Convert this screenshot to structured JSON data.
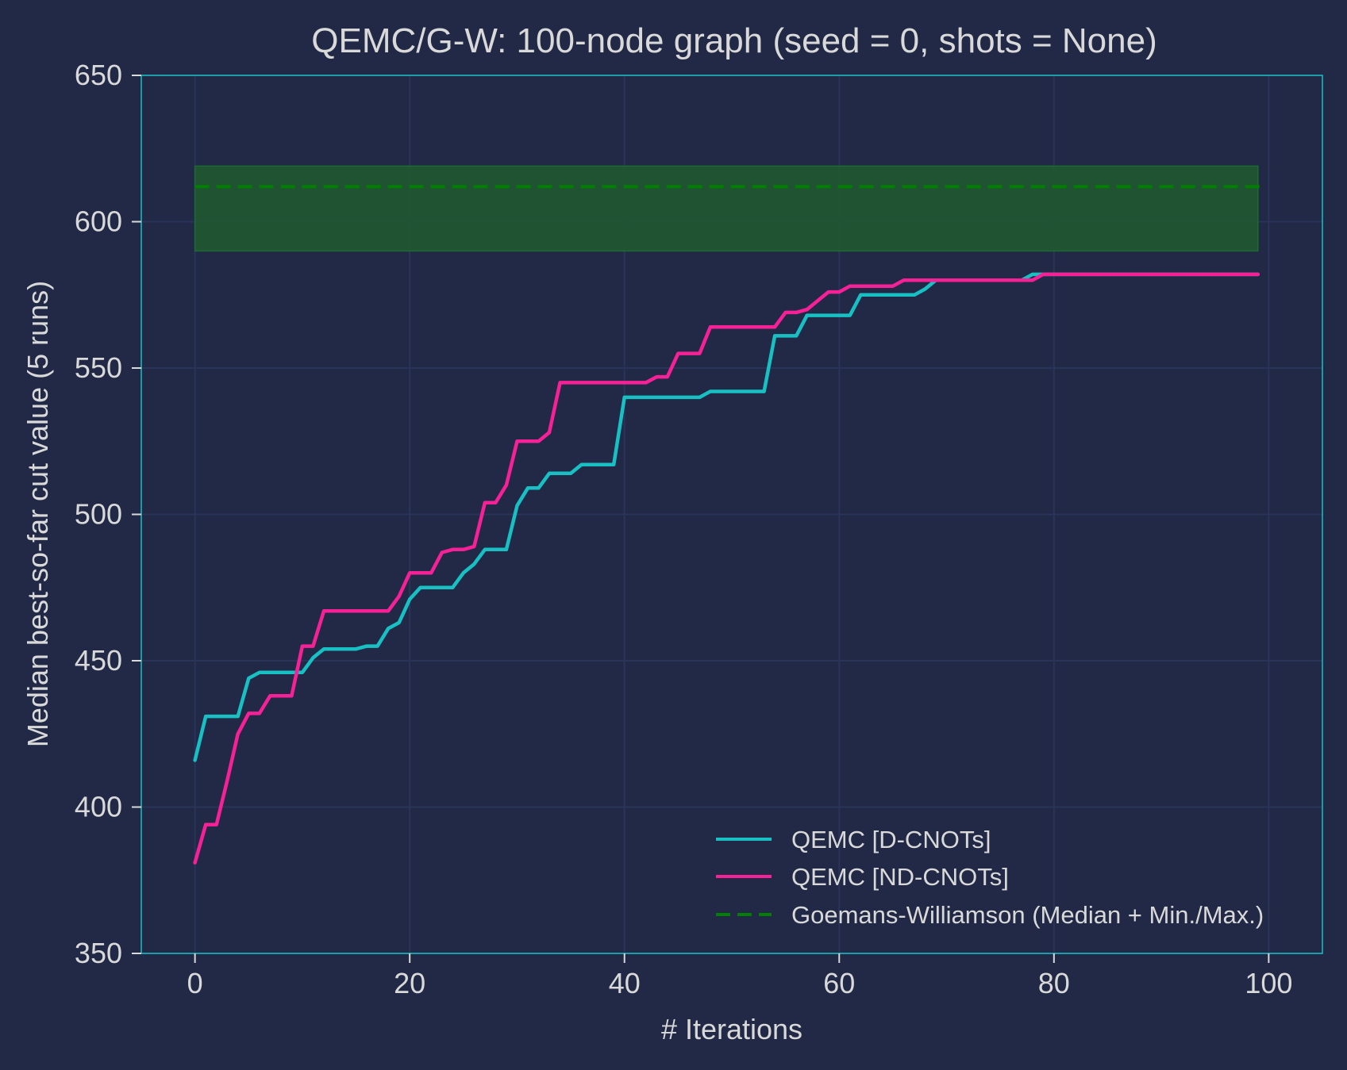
{
  "colors": {
    "background": "#212946",
    "grid": "#2A3459",
    "spine": "#18c0c4",
    "text": "#d9d9d9",
    "d_cnots": "#18c0c4",
    "nd_cnots": "#f62196",
    "gw": "#007f00",
    "gw_band": "#1f5a2f"
  },
  "chart_data": {
    "type": "line",
    "title": "QEMC/G-W: 100-node graph (seed = 0, shots = None)",
    "xlabel": "# Iterations",
    "ylabel": "Median best-so-far cut value (5 runs)",
    "xlim": [
      -5,
      105
    ],
    "ylim": [
      350,
      650
    ],
    "xticks": [
      0,
      20,
      40,
      60,
      80,
      100
    ],
    "yticks": [
      350,
      400,
      450,
      500,
      550,
      600,
      650
    ],
    "xtick_labels": [
      "0",
      "20",
      "40",
      "60",
      "80",
      "100"
    ],
    "ytick_labels": [
      "350",
      "400",
      "450",
      "500",
      "550",
      "600",
      "650"
    ],
    "grid": true,
    "legend_position": "lower-right",
    "series": [
      {
        "name": "QEMC [D-CNOTs]",
        "style": "solid",
        "points": [
          [
            0,
            416
          ],
          [
            1,
            431
          ],
          [
            4,
            431
          ],
          [
            5,
            444
          ],
          [
            6,
            446
          ],
          [
            10,
            446
          ],
          [
            11,
            451
          ],
          [
            12,
            454
          ],
          [
            15,
            454
          ],
          [
            16,
            455
          ],
          [
            17,
            455
          ],
          [
            18,
            461
          ],
          [
            19,
            463
          ],
          [
            20,
            471
          ],
          [
            21,
            475
          ],
          [
            24,
            475
          ],
          [
            25,
            480
          ],
          [
            26,
            483
          ],
          [
            27,
            488
          ],
          [
            29,
            488
          ],
          [
            30,
            503
          ],
          [
            31,
            509
          ],
          [
            32,
            509
          ],
          [
            33,
            514
          ],
          [
            35,
            514
          ],
          [
            36,
            517
          ],
          [
            39,
            517
          ],
          [
            40,
            540
          ],
          [
            47,
            540
          ],
          [
            48,
            542
          ],
          [
            53,
            542
          ],
          [
            54,
            561
          ],
          [
            56,
            561
          ],
          [
            57,
            568
          ],
          [
            61,
            568
          ],
          [
            62,
            575
          ],
          [
            67,
            575
          ],
          [
            68,
            577
          ],
          [
            69,
            580
          ],
          [
            77,
            580
          ],
          [
            78,
            582
          ],
          [
            99,
            582
          ]
        ]
      },
      {
        "name": "QEMC [ND-CNOTs]",
        "style": "solid",
        "points": [
          [
            0,
            381
          ],
          [
            1,
            394
          ],
          [
            2,
            394
          ],
          [
            3,
            409
          ],
          [
            4,
            425
          ],
          [
            5,
            432
          ],
          [
            6,
            432
          ],
          [
            7,
            438
          ],
          [
            9,
            438
          ],
          [
            10,
            455
          ],
          [
            11,
            455
          ],
          [
            12,
            467
          ],
          [
            18,
            467
          ],
          [
            19,
            472
          ],
          [
            20,
            480
          ],
          [
            22,
            480
          ],
          [
            23,
            487
          ],
          [
            24,
            488
          ],
          [
            25,
            488
          ],
          [
            26,
            489
          ],
          [
            27,
            504
          ],
          [
            28,
            504
          ],
          [
            29,
            510
          ],
          [
            30,
            525
          ],
          [
            32,
            525
          ],
          [
            33,
            528
          ],
          [
            34,
            545
          ],
          [
            42,
            545
          ],
          [
            43,
            547
          ],
          [
            44,
            547
          ],
          [
            45,
            555
          ],
          [
            47,
            555
          ],
          [
            48,
            564
          ],
          [
            54,
            564
          ],
          [
            55,
            569
          ],
          [
            56,
            569
          ],
          [
            57,
            570
          ],
          [
            58,
            573
          ],
          [
            59,
            576
          ],
          [
            60,
            576
          ],
          [
            61,
            578
          ],
          [
            65,
            578
          ],
          [
            66,
            580
          ],
          [
            78,
            580
          ],
          [
            79,
            582
          ],
          [
            99,
            582
          ]
        ]
      },
      {
        "name": "Goemans-Williamson (Median + Min./Max.)",
        "style": "dashed",
        "x_range": [
          0,
          99
        ],
        "median": 612,
        "min": 590,
        "max": 619
      }
    ]
  }
}
